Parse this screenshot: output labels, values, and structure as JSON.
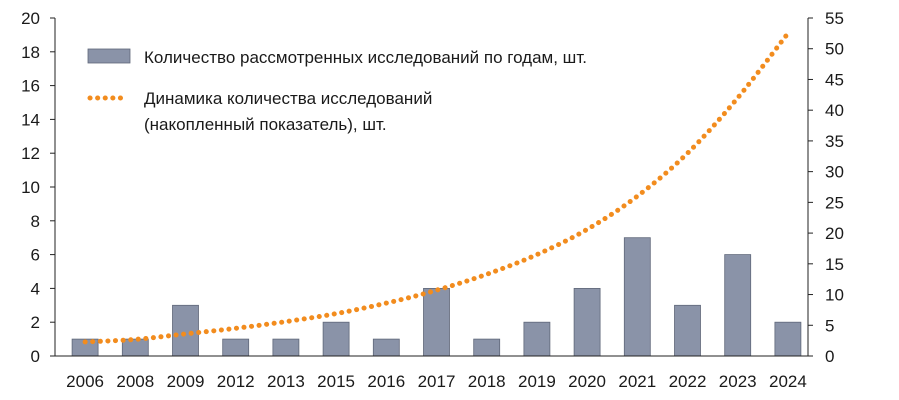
{
  "chart_data": {
    "type": "bar",
    "categories": [
      "2006",
      "2008",
      "2009",
      "2012",
      "2013",
      "2015",
      "2016",
      "2017",
      "2018",
      "2019",
      "2020",
      "2021",
      "2022",
      "2023",
      "2024"
    ],
    "series": [
      {
        "name": "Количество рассмотренных исследований по годам, шт.",
        "type": "bar",
        "axis": "left",
        "color": "#8a93a8",
        "values": [
          1,
          1,
          3,
          1,
          1,
          2,
          1,
          4,
          1,
          2,
          4,
          7,
          3,
          6,
          2
        ]
      },
      {
        "name": "Динамика количества исследований (накопленный показатель), шт.",
        "name_lines": [
          "Динамика количества исследований",
          "(накопленный показатель), шт."
        ],
        "type": "line",
        "style": "dotted",
        "axis": "right",
        "color": "#f28c1e",
        "values": [
          2.3,
          2.7,
          3.6,
          4.5,
          5.6,
          6.9,
          8.6,
          10.7,
          13.3,
          16.5,
          20.6,
          26.0,
          33.0,
          42.0,
          52.5
        ]
      }
    ],
    "y_left": {
      "lim": [
        0,
        20
      ],
      "ticks": [
        0,
        2,
        4,
        6,
        8,
        10,
        12,
        14,
        16,
        18,
        20
      ]
    },
    "y_right": {
      "lim": [
        0,
        55
      ],
      "ticks": [
        0,
        5,
        10,
        15,
        20,
        25,
        30,
        35,
        40,
        45,
        50,
        55
      ]
    },
    "legend": {
      "placement": "top-left, inside plot"
    },
    "grid": false
  }
}
